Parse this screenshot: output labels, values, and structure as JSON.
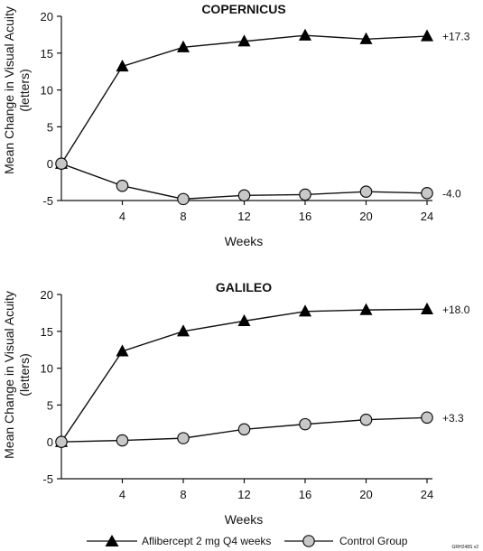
{
  "chart_data": [
    {
      "type": "line",
      "title": "COPERNICUS",
      "xlabel": "Weeks",
      "ylabel": [
        "Mean Change in Visual Acuity",
        "(letters)"
      ],
      "x": [
        0,
        4,
        8,
        12,
        16,
        20,
        24
      ],
      "x_ticks": [
        "4",
        "8",
        "12",
        "16",
        "20",
        "24"
      ],
      "y_ticks": [
        "20",
        "15",
        "10",
        "5",
        "0",
        "-5"
      ],
      "ylim": [
        -5,
        20
      ],
      "xlim": [
        0,
        24
      ],
      "series": [
        {
          "values": [
            0,
            13.2,
            15.8,
            16.6,
            17.4,
            16.9,
            17.3
          ],
          "marker": "triangle",
          "end_label": "+17.3"
        },
        {
          "values": [
            0,
            -3.0,
            -4.8,
            -4.3,
            -4.2,
            -3.8,
            -4.0
          ],
          "marker": "circle",
          "end_label": "-4.0"
        }
      ]
    },
    {
      "type": "line",
      "title": "GALILEO",
      "xlabel": "Weeks",
      "ylabel": [
        "Mean Change in Visual Acuity",
        "(letters)"
      ],
      "x": [
        0,
        4,
        8,
        12,
        16,
        20,
        24
      ],
      "x_ticks": [
        "4",
        "8",
        "12",
        "16",
        "20",
        "24"
      ],
      "y_ticks": [
        "20",
        "15",
        "10",
        "5",
        "0",
        "-5"
      ],
      "ylim": [
        -5,
        20
      ],
      "xlim": [
        0,
        24
      ],
      "series": [
        {
          "values": [
            0,
            12.3,
            15.0,
            16.4,
            17.7,
            17.9,
            18.0
          ],
          "marker": "triangle",
          "end_label": "+18.0"
        },
        {
          "values": [
            0,
            0.2,
            0.5,
            1.7,
            2.4,
            3.0,
            3.3
          ],
          "marker": "circle",
          "end_label": "+3.3"
        }
      ]
    }
  ],
  "legend": [
    {
      "label": "Aflibercept 2 mg Q4 weeks",
      "marker": "triangle"
    },
    {
      "label": "Control Group",
      "marker": "circle"
    }
  ],
  "footnote": "GRH248S v2",
  "colors": {
    "line": "#111111",
    "triangle_fill": "#000000",
    "circle_fill": "#c8c8c8"
  }
}
